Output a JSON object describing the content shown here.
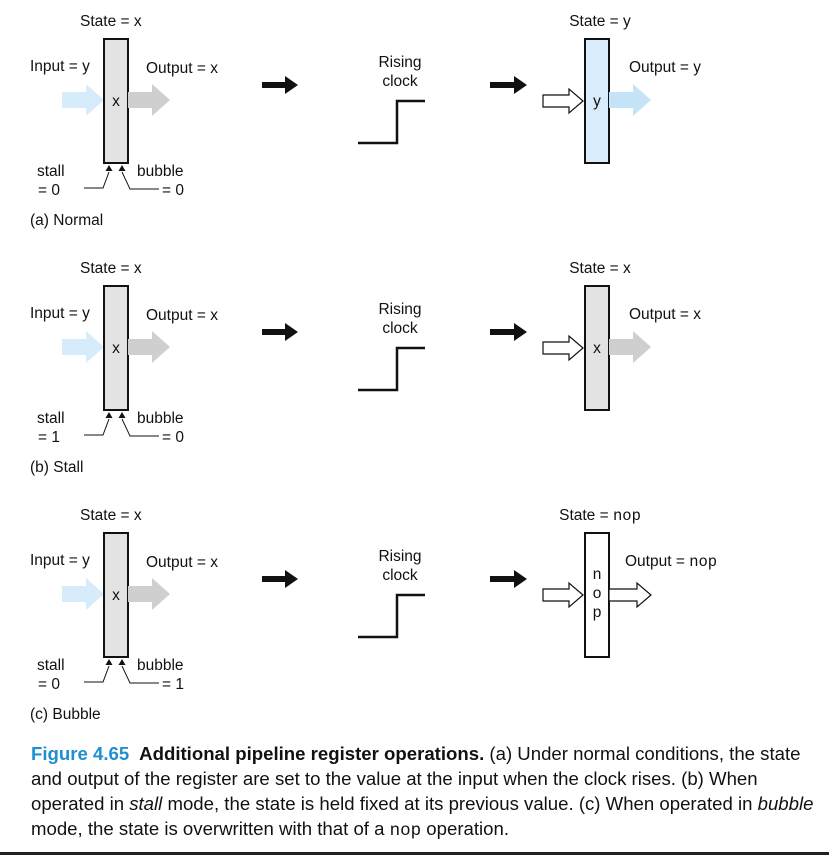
{
  "colors": {
    "register_fill": "#e3e3e3",
    "register_loaded_fill": "#d9ecfb",
    "input_arrow": "#d6ecfb",
    "output_arrow": "#cfcfcf",
    "output_arrow_new": "#c5e3f7",
    "caption_accent": "#1f8fd1"
  },
  "panels": [
    {
      "id": "normal",
      "before": {
        "state": "State = x",
        "input": "Input = y",
        "output": "Output = x",
        "content": "x",
        "stall": [
          "stall",
          "= 0"
        ],
        "bubble": [
          "bubble",
          "= 0"
        ]
      },
      "clock": [
        "Rising",
        "clock"
      ],
      "after": {
        "state_prefix": "State = ",
        "state_value": "y",
        "state_mono": false,
        "output_prefix": "Output = ",
        "output_value": "y",
        "output_mono": false,
        "content": [
          "y"
        ]
      },
      "label": "(a) Normal"
    },
    {
      "id": "stall",
      "before": {
        "state": "State = x",
        "input": "Input = y",
        "output": "Output = x",
        "content": "x",
        "stall": [
          "stall",
          "= 1"
        ],
        "bubble": [
          "bubble",
          "= 0"
        ]
      },
      "clock": [
        "Rising",
        "clock"
      ],
      "after": {
        "state_prefix": "State = ",
        "state_value": "x",
        "state_mono": false,
        "output_prefix": "Output = ",
        "output_value": "x",
        "output_mono": false,
        "content": [
          "x"
        ]
      },
      "label": "(b) Stall"
    },
    {
      "id": "bubble",
      "before": {
        "state": "State = x",
        "input": "Input = y",
        "output": "Output = x",
        "content": "x",
        "stall": [
          "stall",
          "= 0"
        ],
        "bubble": [
          "bubble",
          "= 1"
        ]
      },
      "clock": [
        "Rising",
        "clock"
      ],
      "after": {
        "state_prefix": "State = ",
        "state_value": "nop",
        "state_mono": true,
        "output_prefix": "Output = ",
        "output_value": "nop",
        "output_mono": true,
        "content": [
          "n",
          "o",
          "p"
        ]
      },
      "label": "(c) Bubble"
    }
  ],
  "caption": {
    "number": "Figure 4.65",
    "title": "Additional pipeline register operations.",
    "t1": " (a) Under normal conditions, the state and output of the register are set to the value at the input when the clock rises. (b) When operated in ",
    "em1": "stall",
    "t2": " mode, the state is held fixed at its previous value. (c) When operated in ",
    "em2": "bubble",
    "t3": " mode, the state is overwritten with that of a ",
    "code": "nop",
    "t4": " operation."
  }
}
